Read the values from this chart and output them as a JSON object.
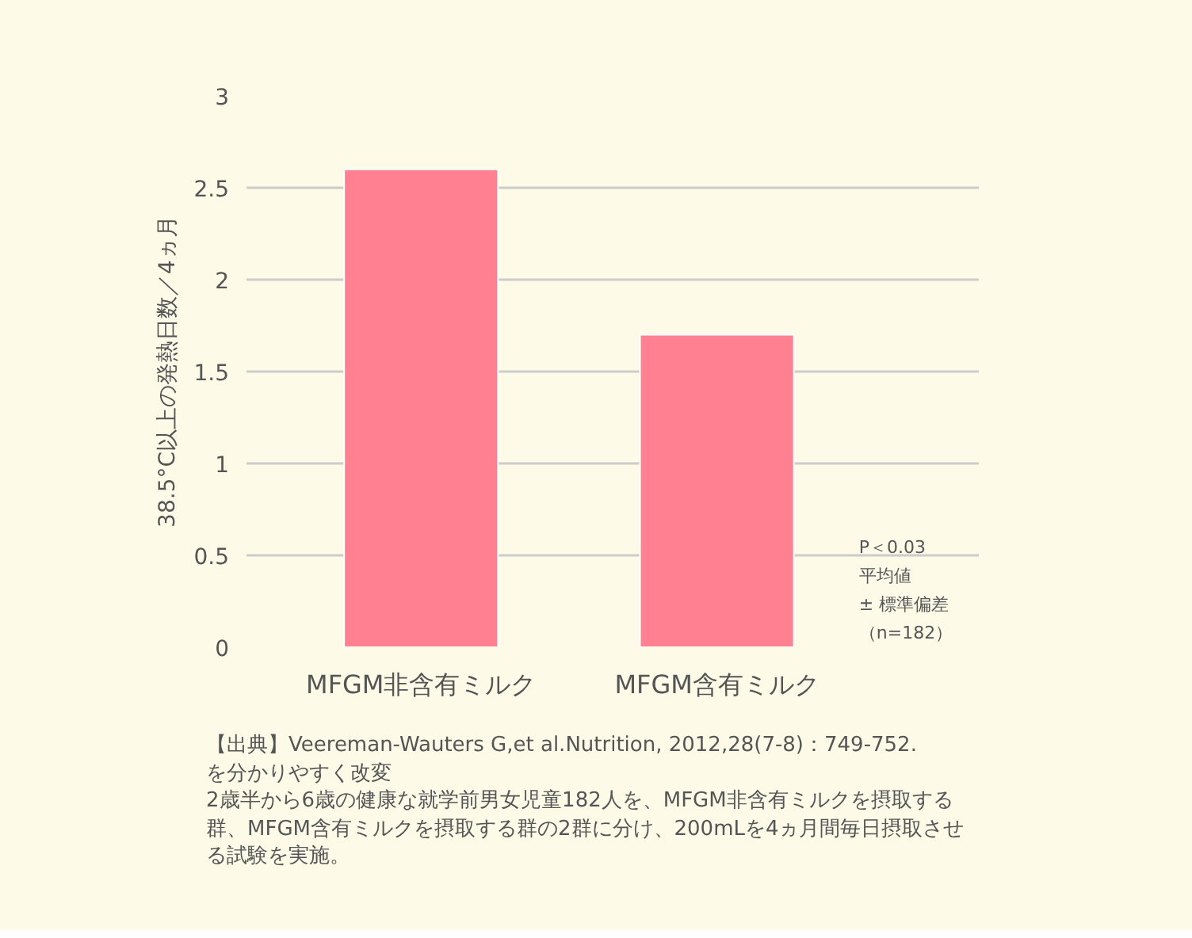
{
  "chart_data": {
    "type": "bar",
    "ylabel": "38.5°C以上の発熱日数／4ヵ月",
    "categories": [
      "MFGM非含有ミルク",
      "MFGM含有ミルク"
    ],
    "values": [
      2.6,
      1.7
    ],
    "color": "#ff8090",
    "ylim": [
      0,
      3
    ],
    "yticks": [
      0,
      0.5,
      1,
      1.5,
      2,
      2.5,
      3
    ],
    "grid": "y",
    "annotations": [
      "P＜0.03",
      "平均値",
      "± 標準偏差",
      "（n=182）",
      "【出典】Veereman-Wauters G,et al.Nutrition, 2012,28(7-8)：749-752.",
      "を分かりやすく改変",
      "2歳半から6歳の健康な就学前男女児童182人を、MFGM非含有ミルクを摂取する群、MFGM含有ミルクを摂取する群の2群に分け、200mLを4ヵ月間毎日摂取させる試験を実施。"
    ]
  }
}
